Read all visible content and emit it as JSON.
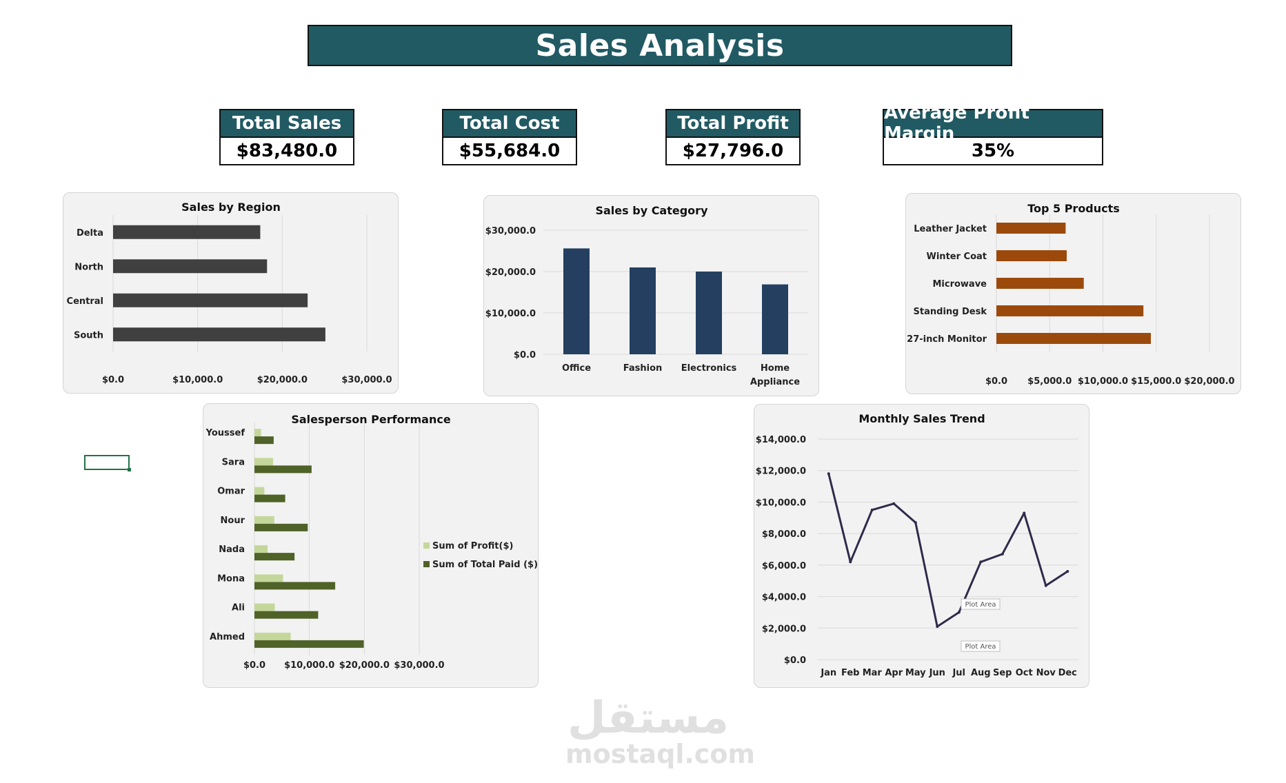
{
  "header": {
    "title": "Sales Analysis"
  },
  "kpis": [
    {
      "label": "Total Sales",
      "value": "$83,480.0"
    },
    {
      "label": "Total Cost",
      "value": "$55,684.0"
    },
    {
      "label": "Total Profit",
      "value": "$27,796.0"
    },
    {
      "label": "Average Profit Margin",
      "value": "35%"
    }
  ],
  "watermark": {
    "arabic": "مستقل",
    "latin": "mostaql.com"
  },
  "colors": {
    "banner": "#215a63",
    "region": "#404040",
    "category": "#243f60",
    "products": "#9c4a0b",
    "profit": "#c4d79b",
    "total_paid": "#4f6228",
    "trend": "#302a4a"
  },
  "chart_data": [
    {
      "id": "region",
      "type": "bar",
      "orientation": "horizontal",
      "title": "Sales by Region",
      "categories": [
        "Delta",
        "North",
        "Central",
        "South"
      ],
      "values": [
        17400,
        18200,
        23000,
        25100
      ],
      "xlim": [
        0,
        30000
      ],
      "ticks": [
        0,
        10000,
        20000,
        30000
      ],
      "tick_labels": [
        "$0.0",
        "$10,000.0",
        "$20,000.0",
        "$30,000.0"
      ],
      "grid": true
    },
    {
      "id": "category",
      "type": "bar",
      "orientation": "vertical",
      "title": "Sales by Category",
      "categories": [
        [
          "Office"
        ],
        [
          "Fashion"
        ],
        [
          "Electronics"
        ],
        [
          "Home",
          "Appliance"
        ]
      ],
      "values": [
        25600,
        21000,
        20000,
        16900
      ],
      "ylim": [
        0,
        30000
      ],
      "ticks": [
        0,
        10000,
        20000,
        30000
      ],
      "tick_labels": [
        "$0.0",
        "$10,000.0",
        "$20,000.0",
        "$30,000.0"
      ],
      "grid": true
    },
    {
      "id": "products",
      "type": "bar",
      "orientation": "horizontal",
      "title": "Top 5 Products",
      "categories": [
        "Leather Jacket",
        "Winter Coat",
        "Microwave",
        "Standing Desk",
        "27-inch Monitor"
      ],
      "values": [
        6500,
        6600,
        8200,
        13800,
        14500
      ],
      "xlim": [
        0,
        20000
      ],
      "ticks": [
        0,
        5000,
        10000,
        15000,
        20000
      ],
      "tick_labels": [
        "$0.0",
        "$5,000.0",
        "$10,000.0",
        "$15,000.0",
        "$20,000.0"
      ],
      "grid": true
    },
    {
      "id": "salesperson",
      "type": "bar",
      "orientation": "horizontal",
      "title": "Salesperson Performance",
      "categories": [
        "Youssef",
        "Sara",
        "Omar",
        "Nour",
        "Nada",
        "Mona",
        "Ali",
        "Ahmed"
      ],
      "series": [
        {
          "name": "Sum of Profit($)",
          "values": [
            1200,
            3400,
            1800,
            3600,
            2400,
            5200,
            3700,
            6600
          ]
        },
        {
          "name": "Sum of Total Paid ($)",
          "values": [
            3500,
            10400,
            5600,
            9700,
            7300,
            14700,
            11600,
            19900
          ]
        }
      ],
      "xlim": [
        0,
        30000
      ],
      "ticks": [
        0,
        10000,
        20000,
        30000
      ],
      "tick_labels": [
        "$0.0",
        "$10,000.0",
        "$20,000.0",
        "$30,000.0"
      ],
      "legend": "right",
      "grid": true
    },
    {
      "id": "monthly",
      "type": "line",
      "title": "Monthly Sales Trend",
      "categories": [
        "Jan",
        "Feb",
        "Mar",
        "Apr",
        "May",
        "Jun",
        "Jul",
        "Aug",
        "Sep",
        "Oct",
        "Nov",
        "Dec"
      ],
      "values": [
        11800,
        6200,
        9500,
        9900,
        8700,
        2100,
        3000,
        6200,
        6700,
        9300,
        4700,
        5600
      ],
      "ylim": [
        0,
        14000
      ],
      "ticks": [
        0,
        2000,
        4000,
        6000,
        8000,
        10000,
        12000,
        14000
      ],
      "tick_labels": [
        "$0.0",
        "$2,000.0",
        "$4,000.0",
        "$6,000.0",
        "$8,000.0",
        "$10,000.0",
        "$12,000.0",
        "$14,000.0"
      ],
      "tooltip_label": "Plot Area",
      "grid": true
    }
  ]
}
